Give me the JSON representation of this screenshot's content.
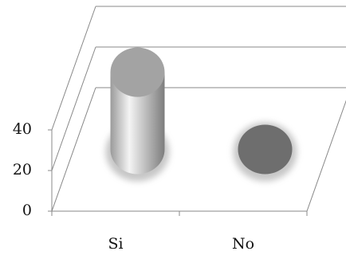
{
  "chart_data": {
    "type": "cylinder3d",
    "categories": [
      "Si",
      "No"
    ],
    "values": [
      38,
      0
    ],
    "ylim": [
      0,
      40
    ],
    "yticks": [
      0,
      20,
      40
    ],
    "grid": true
  }
}
